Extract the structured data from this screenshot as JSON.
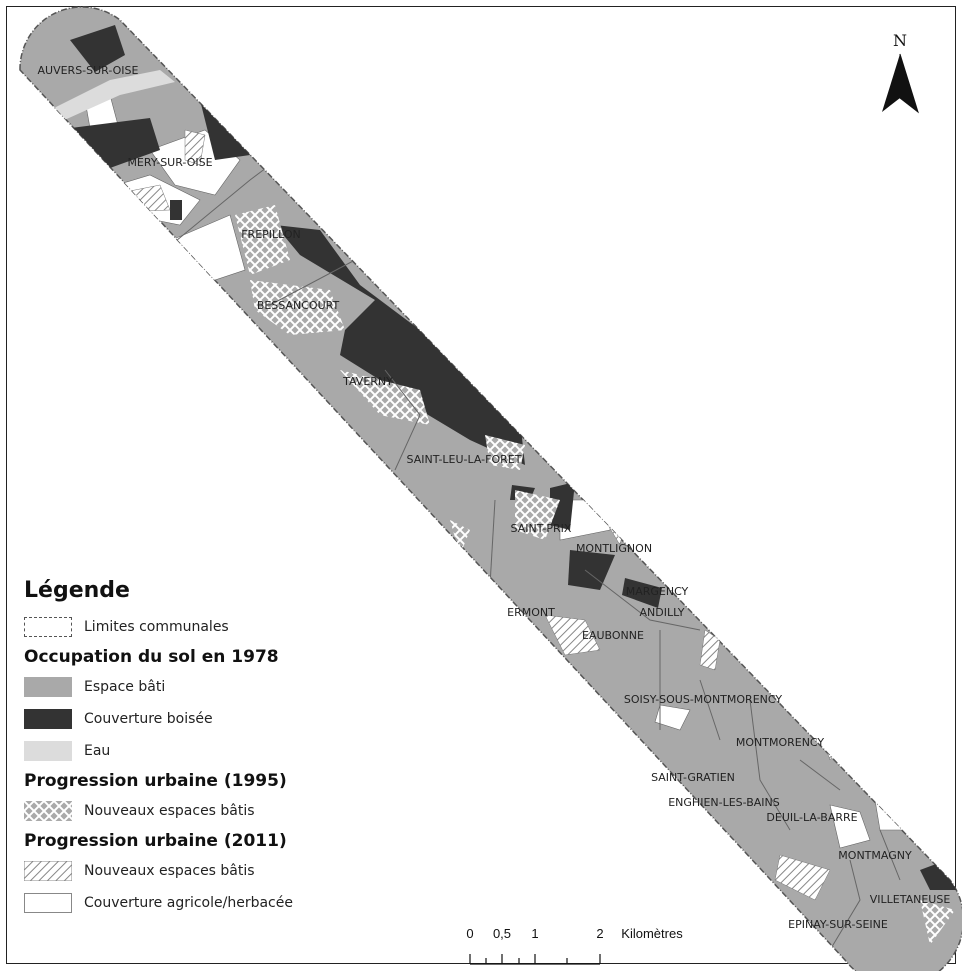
{
  "towns": [
    {
      "name": "AUVERS-SUR-OISE"
    },
    {
      "name": "MERY-SUR-OISE"
    },
    {
      "name": "FREPILLON"
    },
    {
      "name": "BESSANCOURT"
    },
    {
      "name": "TAVERNY"
    },
    {
      "name": "SAINT-LEU-LA-FORET"
    },
    {
      "name": "SAINT-PRIX"
    },
    {
      "name": "MONTLIGNON"
    },
    {
      "name": "MARGENCY"
    },
    {
      "name": "ANDILLY"
    },
    {
      "name": "ERMONT"
    },
    {
      "name": "EAUBONNE"
    },
    {
      "name": "SOISY-SOUS-MONTMORENCY"
    },
    {
      "name": "MONTMORENCY"
    },
    {
      "name": "SAINT-GRATIEN"
    },
    {
      "name": "ENGHIEN-LES-BAINS"
    },
    {
      "name": "DEUIL-LA-BARRE"
    },
    {
      "name": "MONTMAGNY"
    },
    {
      "name": "VILLETANEUSE"
    },
    {
      "name": "EPINAY-SUR-SEINE"
    }
  ],
  "north_arrow": {
    "label": "N"
  },
  "scale_bar": {
    "ticks": [
      "0",
      "0,5",
      "1",
      "2"
    ],
    "unit": "Kilomètres"
  },
  "legend": {
    "title": "Légende",
    "boundary": {
      "label": "Limites communales"
    },
    "sections": [
      {
        "title": "Occupation du sol en 1978",
        "items": [
          {
            "label": "Espace bâti",
            "color": "#a9a9a9"
          },
          {
            "label": "Couverture boisée",
            "color": "#333333"
          },
          {
            "label": "Eau",
            "color": "#dcdcdc"
          }
        ]
      },
      {
        "title": "Progression urbaine (1995)",
        "items": [
          {
            "label": "Nouveaux espaces bâtis",
            "pattern": "crosshatch"
          }
        ]
      },
      {
        "title": "Progression urbaine (2011)",
        "items": [
          {
            "label": "Nouveaux espaces bâtis",
            "pattern": "diagonal-hatch"
          },
          {
            "label": "Couverture agricole/herbacée",
            "color": "#ffffff"
          }
        ]
      }
    ]
  }
}
